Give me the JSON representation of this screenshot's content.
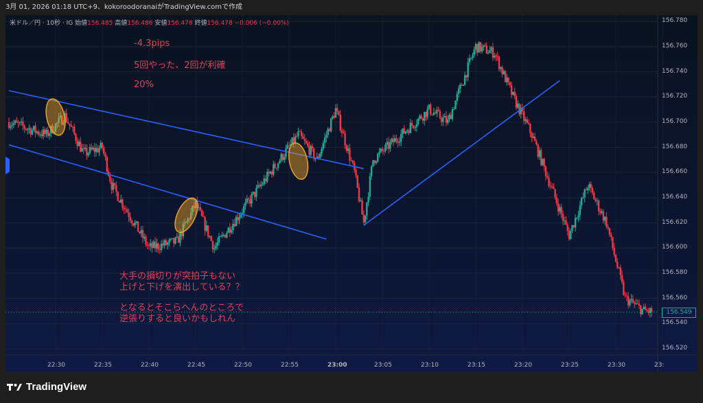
{
  "header": {
    "caption": "3月 01, 2026 01:18 UTC+9、kokoroodoranaiがTradingView.comで作成"
  },
  "legend": {
    "symbol": "米ドル／円 · 10秒 · IG",
    "open_label": "始値",
    "open_value": "156.485",
    "high_label": "高値",
    "high_value": "156.486",
    "low_label": "安値",
    "low_value": "156.478",
    "close_label": "終値",
    "close_value": "156.478",
    "change": "−0.006 (−0.00%)"
  },
  "notes": {
    "pips": "-4.3pips",
    "trades": "5回やった、2回が利確",
    "percent": "20%",
    "comment_line1": "大手の損切りが突拍子もない",
    "comment_line2": "上げと下げを演出している？？",
    "comment_line3": "となるとそこらへんのところで",
    "comment_line4": "逆張りすると良いかもしれん"
  },
  "last_price": "156.549",
  "brand": {
    "name": "TradingView"
  },
  "colors": {
    "up": "#22ab94",
    "down": "#f23645",
    "trendline": "#2962ff",
    "highlight": "#f5a623"
  },
  "chart_data": {
    "type": "candlestick",
    "y_axis": {
      "range": [
        156.515,
        156.785
      ],
      "ticks": [
        "156.780",
        "156.760",
        "156.740",
        "156.720",
        "156.700",
        "156.680",
        "156.660",
        "156.640",
        "156.620",
        "156.600",
        "156.580",
        "156.560",
        "156.540",
        "156.520"
      ]
    },
    "x_axis": {
      "ticks": [
        "22:30",
        "22:35",
        "22:40",
        "22:45",
        "22:50",
        "22:55",
        "23:00",
        "23:05",
        "23:10",
        "23:15",
        "23:20",
        "23:25",
        "23:30",
        "23:"
      ]
    },
    "price_path": [
      [
        "22:25",
        156.7
      ],
      [
        "22:29",
        156.69
      ],
      [
        "22:31",
        156.705
      ],
      [
        "22:33",
        156.675
      ],
      [
        "22:35",
        156.68
      ],
      [
        "22:36",
        156.65
      ],
      [
        "22:40",
        156.6
      ],
      [
        "22:43",
        156.605
      ],
      [
        "22:45",
        156.635
      ],
      [
        "22:47",
        156.6
      ],
      [
        "22:50",
        156.63
      ],
      [
        "22:53",
        156.66
      ],
      [
        "22:56",
        156.69
      ],
      [
        "22:58",
        156.67
      ],
      [
        "23:00",
        156.71
      ],
      [
        "23:02",
        156.66
      ],
      [
        "23:03",
        156.62
      ],
      [
        "23:04",
        156.67
      ],
      [
        "23:07",
        156.69
      ],
      [
        "23:10",
        156.71
      ],
      [
        "23:12",
        156.7
      ],
      [
        "23:15",
        156.76
      ],
      [
        "23:17",
        156.755
      ],
      [
        "23:19",
        156.72
      ],
      [
        "23:21",
        156.69
      ],
      [
        "23:23",
        156.65
      ],
      [
        "23:25",
        156.61
      ],
      [
        "23:27",
        156.65
      ],
      [
        "23:29",
        156.62
      ],
      [
        "23:31",
        156.56
      ],
      [
        "23:33",
        156.55
      ],
      [
        "23:34",
        156.549
      ]
    ],
    "trendlines": [
      {
        "from": [
          "22:25",
          156.725
        ],
        "to": [
          "23:03",
          156.663
        ]
      },
      {
        "from": [
          "22:25",
          156.682
        ],
        "to": [
          "22:59",
          156.607
        ]
      },
      {
        "from": [
          "23:03",
          156.618
        ],
        "to": [
          "23:24",
          156.733
        ]
      }
    ],
    "highlights": [
      {
        "center": [
          "22:30",
          156.704
        ]
      },
      {
        "center": [
          "22:44",
          156.626
        ]
      },
      {
        "center": [
          "22:56",
          156.669
        ]
      }
    ],
    "last_price": 156.549
  }
}
